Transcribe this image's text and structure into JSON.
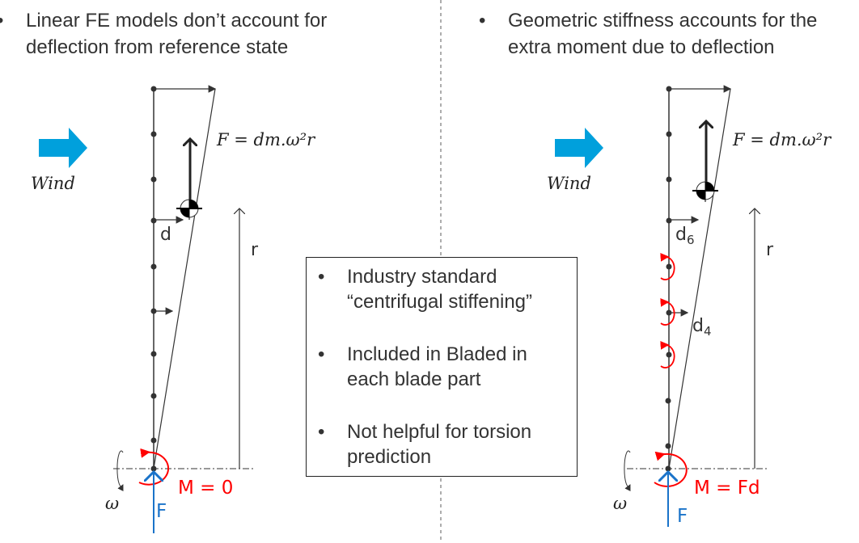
{
  "left": {
    "bullet": "Linear FE models don’t account for",
    "bullet_line2": "deflection from reference state",
    "formula": "F = dm.ω²r",
    "wind_label": "Wind",
    "d_label": "d",
    "r_label": "r",
    "omega_label": "ω",
    "force_label": "F",
    "moment_label": "M = 0"
  },
  "right": {
    "bullet": "Geometric stiffness accounts for the",
    "bullet_line2": "extra moment due to deflection",
    "formula": "F = dm.ω²r",
    "wind_label": "Wind",
    "d6_label": "d",
    "d6_sub": "6",
    "d4_label": "d",
    "d4_sub": "4",
    "r_label": "r",
    "omega_label": "ω",
    "force_label": "F",
    "moment_label": "M = Fd"
  },
  "callout": {
    "items": [
      {
        "text": "Industry standard “centrifugal stiffening”"
      },
      {
        "text": "Included in Bladed in each blade part"
      },
      {
        "text": "Not helpful for torsion prediction"
      }
    ]
  },
  "colors": {
    "wind_arrow": "#00a0dc",
    "moment": "#ff0000",
    "force": "#1a73c9"
  }
}
